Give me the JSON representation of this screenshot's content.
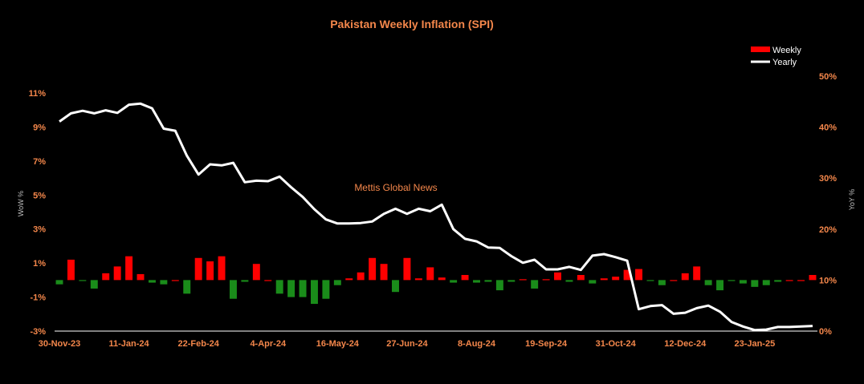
{
  "chart_data": {
    "type": "bar+line",
    "title": "Pakistan Weekly Inflation (SPI)",
    "watermark": "Mettis Global News",
    "y_left_label": "WoW %",
    "y_right_label": "YoY %",
    "y_left_ticks": [
      "11%",
      "9%",
      "7%",
      "5%",
      "3%",
      "1%",
      "-1%",
      "-3%"
    ],
    "y_left_range": [
      -3,
      11
    ],
    "y_right_ticks": [
      "50%",
      "40%",
      "30%",
      "20%",
      "10%",
      "0%"
    ],
    "y_right_range": [
      0,
      50
    ],
    "x_tick_labels": [
      "30-Nov-23",
      "11-Jan-24",
      "22-Feb-24",
      "4-Apr-24",
      "16-May-24",
      "27-Jun-24",
      "8-Aug-24",
      "19-Sep-24",
      "31-Oct-24",
      "12-Dec-24",
      "23-Jan-25"
    ],
    "x_tick_every": 3,
    "num_weeks": 66,
    "legend": [
      {
        "name": "Weekly",
        "color": "#ff0000",
        "shape": "bar"
      },
      {
        "name": "Yearly",
        "color": "#ffffff",
        "shape": "line"
      }
    ],
    "colors": {
      "positive_bar": "#ff0000",
      "negative_bar": "#1a8c1a",
      "line": "#ffffff",
      "label_text": "#f4874b",
      "background": "#000000"
    },
    "series": [
      {
        "name": "Weekly",
        "axis": "left",
        "values": [
          -0.25,
          1.2,
          -0.05,
          -0.5,
          0.4,
          0.8,
          1.4,
          0.35,
          -0.15,
          -0.25,
          0.0,
          -0.8,
          1.3,
          1.1,
          1.4,
          -1.1,
          -0.1,
          0.95,
          0.0,
          -0.8,
          -1.0,
          -1.0,
          -1.4,
          -1.1,
          -0.3,
          0.1,
          0.45,
          1.3,
          0.95,
          -0.7,
          1.3,
          0.1,
          0.75,
          0.15,
          -0.15,
          0.3,
          -0.15,
          -0.1,
          -0.6,
          -0.1,
          0.05,
          -0.5,
          0.05,
          0.45,
          -0.1,
          0.3,
          -0.2,
          0.1,
          0.2,
          0.6,
          0.65,
          -0.05,
          -0.3,
          0.0,
          0.4,
          0.8,
          -0.3,
          -0.6,
          -0.05,
          -0.2,
          -0.4,
          -0.3,
          -0.1,
          0.0,
          0.0,
          0.3
        ]
      },
      {
        "name": "Yearly",
        "axis": "right",
        "values": [
          41.1,
          42.7,
          43.2,
          42.7,
          43.3,
          42.8,
          44.4,
          44.6,
          43.7,
          39.7,
          39.3,
          34.4,
          30.7,
          32.7,
          32.5,
          33.0,
          29.2,
          29.5,
          29.4,
          30.3,
          28.2,
          26.3,
          23.9,
          21.9,
          21.1,
          21.1,
          21.2,
          21.5,
          23.0,
          24.0,
          23.0,
          24.0,
          23.5,
          24.8,
          20.0,
          18.1,
          17.6,
          16.4,
          16.3,
          14.7,
          13.4,
          14.0,
          12.1,
          12.1,
          12.6,
          12.0,
          14.8,
          15.1,
          14.5,
          13.8,
          4.3,
          4.9,
          5.1,
          3.4,
          3.6,
          4.5,
          5.0,
          3.8,
          1.8,
          0.9,
          0.2,
          0.3,
          0.8,
          0.8,
          0.9,
          1.0
        ]
      }
    ]
  }
}
